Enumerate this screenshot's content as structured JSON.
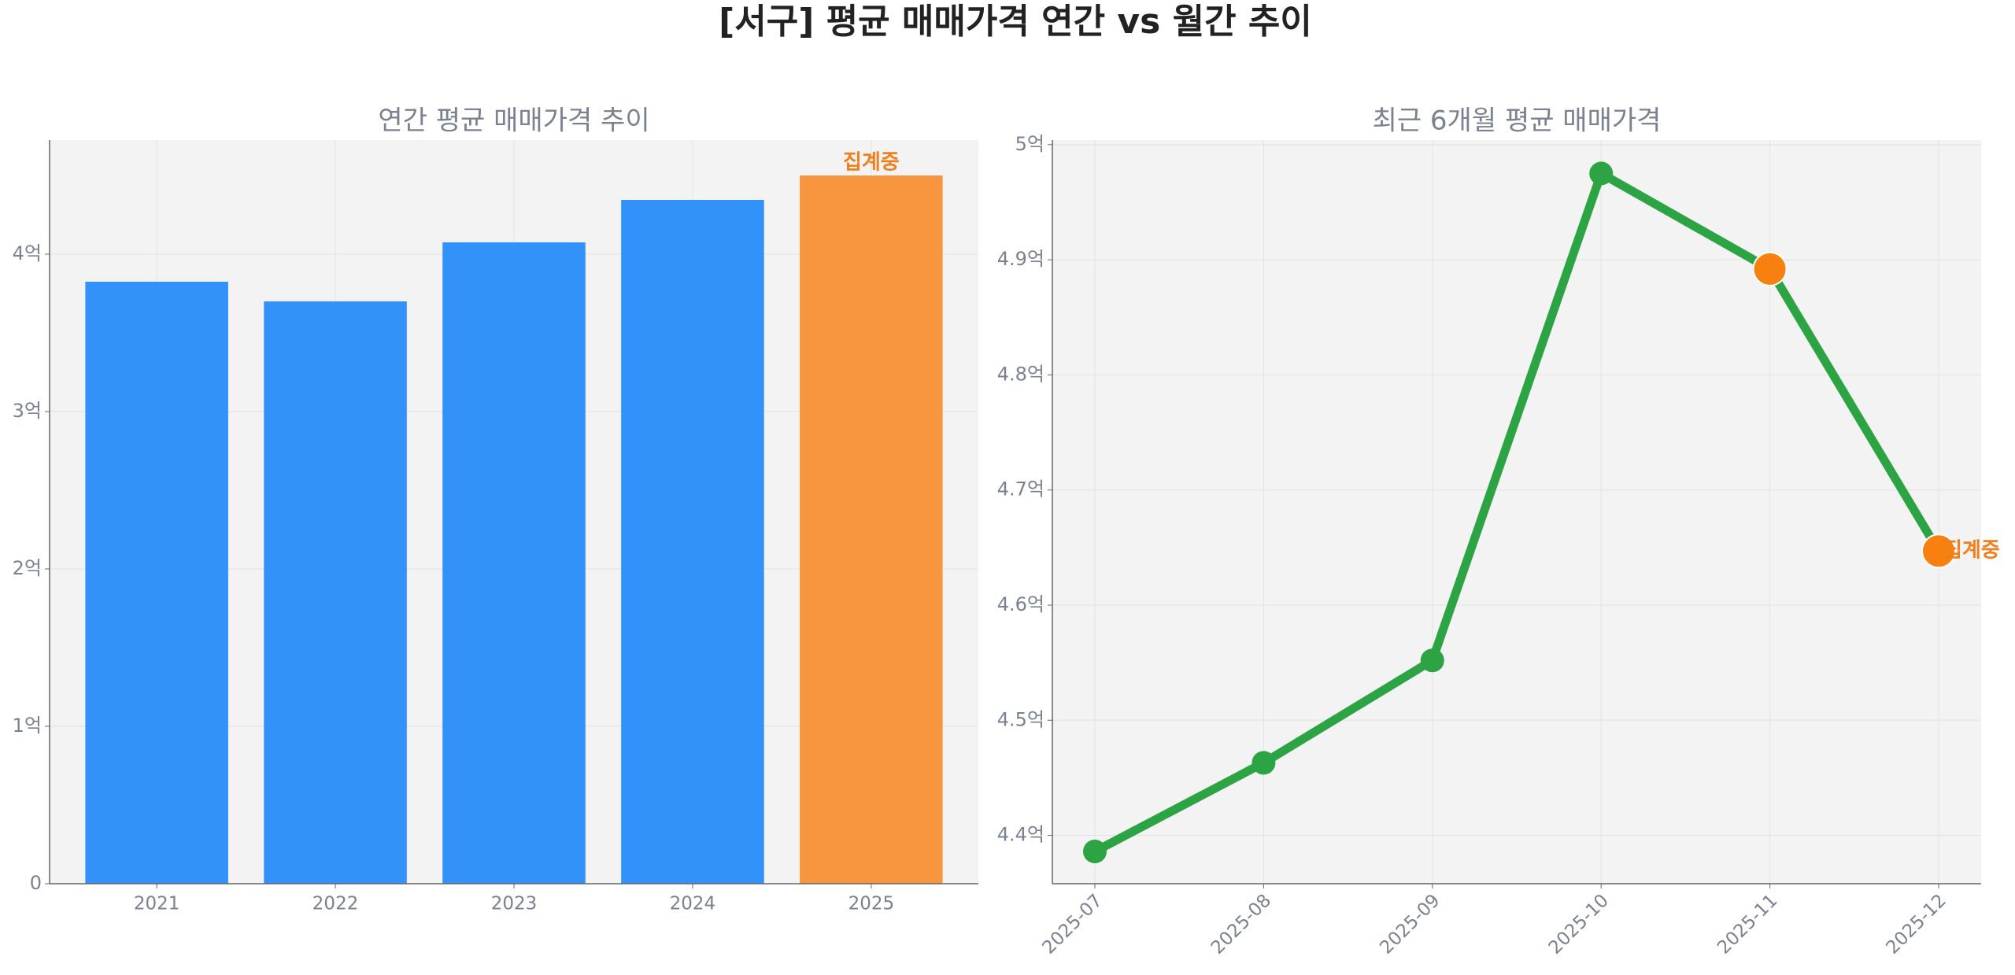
{
  "title": "[서구] 평균 매매가격 연간 vs 월간 추이",
  "chart_data": [
    {
      "type": "bar",
      "title": "연간 평균 매매가격 추이",
      "categories": [
        "2021",
        "2022",
        "2023",
        "2024",
        "2025"
      ],
      "values": [
        3.825,
        3.7,
        4.075,
        4.345,
        4.5
      ],
      "colors": [
        "#3292f9",
        "#3292f9",
        "#3292f9",
        "#3292f9",
        "#f7963e"
      ],
      "ylim": [
        0,
        4.725
      ],
      "yticks": [
        0,
        {
          "value": 1,
          "label": "1억"
        },
        {
          "value": 2,
          "label": "2억"
        },
        {
          "value": 3,
          "label": "3억"
        },
        {
          "value": 4,
          "label": "4억"
        }
      ],
      "grid": true,
      "annotations": [
        {
          "text": "집계중",
          "x": "2025",
          "color": "#f07f1c"
        }
      ]
    },
    {
      "type": "line",
      "title": "최근 6개월 평균 매매가격",
      "categories": [
        "2025-07",
        "2025-08",
        "2025-09",
        "2025-10",
        "2025-11",
        "2025-12"
      ],
      "values": [
        4.386,
        4.463,
        4.552,
        4.975,
        4.892,
        4.647
      ],
      "color": "#2ca444",
      "marker_colors": [
        "#2ca444",
        "#2ca444",
        "#2ca444",
        "#2ca444",
        "#f7800e",
        "#f7800e"
      ],
      "ylim": [
        4.358,
        5.004
      ],
      "yticks": [
        {
          "value": 4.4,
          "label": "4.4억"
        },
        {
          "value": 4.5,
          "label": "4.5억"
        },
        {
          "value": 4.6,
          "label": "4.6억"
        },
        {
          "value": 4.7,
          "label": "4.7억"
        },
        {
          "value": 4.8,
          "label": "4.8억"
        },
        {
          "value": 4.9,
          "label": "4.9억"
        },
        {
          "value": 5,
          "label": "5억"
        }
      ],
      "grid": true,
      "annotations": [
        {
          "text": "집계중",
          "x": "2025-12",
          "color": "#f07f1c"
        }
      ]
    }
  ]
}
